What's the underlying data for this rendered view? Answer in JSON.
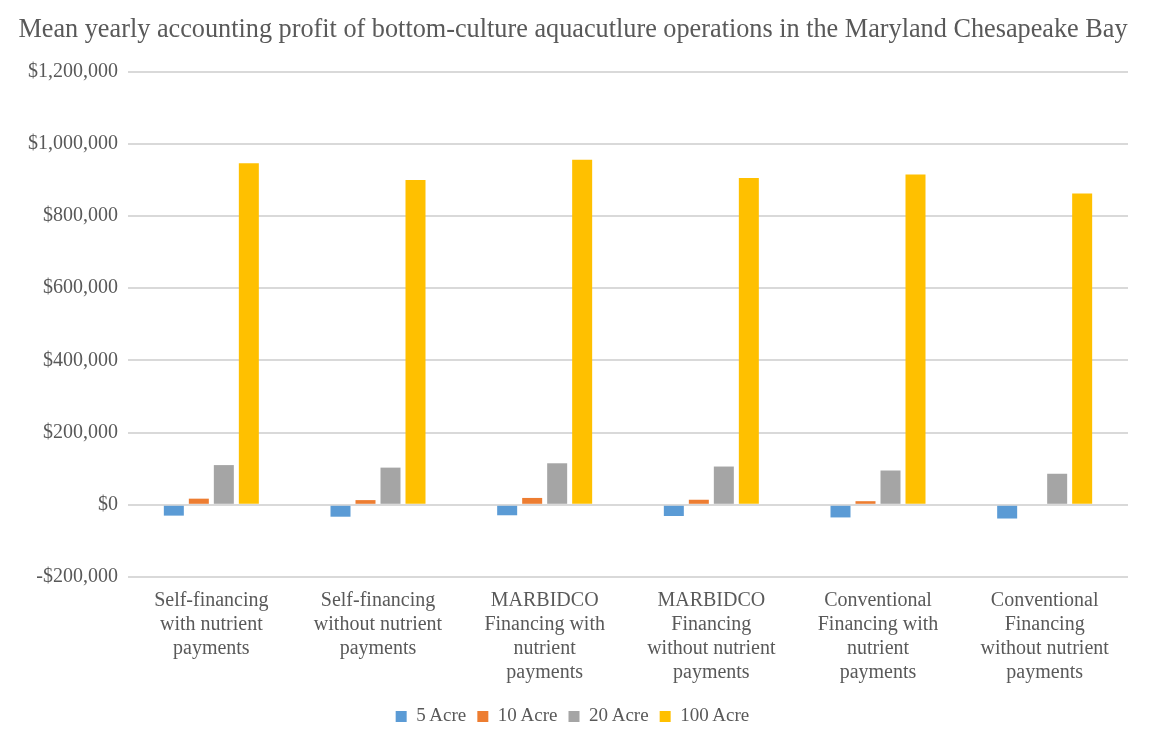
{
  "chart_data": {
    "type": "bar",
    "title": "Mean yearly accounting profit of bottom-culture aquacutlure operations in the Maryland Chesapeake Bay",
    "categories": [
      [
        "Self-financing",
        "with nutrient",
        "payments"
      ],
      [
        "Self-financing",
        "without nutrient",
        "payments"
      ],
      [
        "MARBIDCO",
        "Financing with",
        "nutrient",
        "payments"
      ],
      [
        "MARBIDCO",
        "Financing",
        "without nutrient",
        "payments"
      ],
      [
        "Conventional",
        "Financing with",
        "nutrient",
        "payments"
      ],
      [
        "Conventional",
        "Financing",
        "without nutrient",
        "payments"
      ]
    ],
    "series": [
      {
        "name": "5 Acre",
        "color": "#5b9bd5",
        "values": [
          -30000,
          -33000,
          -29000,
          -31000,
          -35000,
          -38000
        ]
      },
      {
        "name": "10 Acre",
        "color": "#ed7d31",
        "values": [
          17000,
          13000,
          19000,
          14000,
          10000,
          0
        ]
      },
      {
        "name": "20 Acre",
        "color": "#a5a5a5",
        "values": [
          110000,
          103000,
          115000,
          106000,
          95000,
          86000
        ]
      },
      {
        "name": "100 Acre",
        "color": "#ffc000",
        "values": [
          946000,
          900000,
          956000,
          905000,
          915000,
          862000
        ]
      }
    ],
    "ylim": [
      -200000,
      1200000
    ],
    "yticks": [
      {
        "value": -200000,
        "label": "-$200,000"
      },
      {
        "value": 0,
        "label": "$0"
      },
      {
        "value": 200000,
        "label": "$200,000"
      },
      {
        "value": 400000,
        "label": "$400,000"
      },
      {
        "value": 600000,
        "label": "$600,000"
      },
      {
        "value": 800000,
        "label": "$800,000"
      },
      {
        "value": 1000000,
        "label": "$1,000,000"
      },
      {
        "value": 1200000,
        "label": "$1,200,000"
      }
    ],
    "grid": "y",
    "legend": "bottom"
  }
}
